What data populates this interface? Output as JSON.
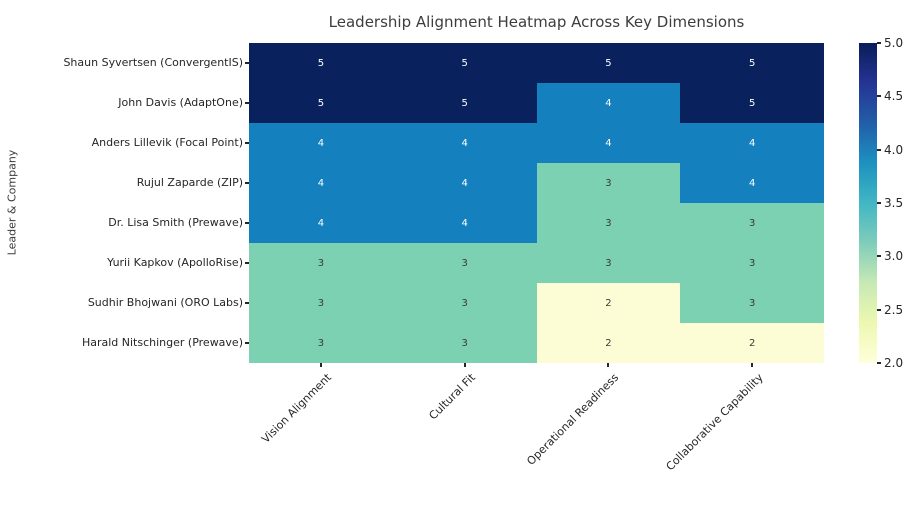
{
  "chart_data": {
    "type": "heatmap",
    "title": "Leadership Alignment Heatmap Across Key Dimensions",
    "xlabel": "",
    "ylabel": "Leader & Company",
    "rows": [
      "Shaun Syvertsen (ConvergentIS)",
      "John Davis (AdaptOne)",
      "Anders Lillevik (Focal Point)",
      "Rujul Zaparde (ZIP)",
      "Dr. Lisa Smith (Prewave)",
      "Yurii Kapkov (ApolloRise)",
      "Sudhir Bhojwani (ORO Labs)",
      "Harald Nitschinger (Prewave)"
    ],
    "columns": [
      "Vision Alignment",
      "Cultural Fit",
      "Operational Readiness",
      "Collaborative Capability"
    ],
    "values": [
      [
        5,
        5,
        5,
        5
      ],
      [
        5,
        5,
        4,
        5
      ],
      [
        4,
        4,
        4,
        4
      ],
      [
        4,
        4,
        3,
        4
      ],
      [
        4,
        4,
        3,
        3
      ],
      [
        3,
        3,
        3,
        3
      ],
      [
        3,
        3,
        2,
        3
      ],
      [
        3,
        3,
        2,
        2
      ]
    ],
    "value_colors": {
      "2": "#fcfdd5",
      "3": "#7cd1b3",
      "4": "#1480be",
      "5": "#09215c"
    },
    "annotation_text_colors": {
      "on_dark": "#ffffff",
      "on_light": "#3a3a3a"
    },
    "colorbar": {
      "min": 2.0,
      "max": 5.0,
      "tick_labels": [
        "5.0",
        "4.5",
        "4.0",
        "3.5",
        "3.0",
        "2.5",
        "2.0"
      ],
      "tick_values": [
        5.0,
        4.5,
        4.0,
        3.5,
        3.0,
        2.5,
        2.0
      ],
      "gradient_stops_top_to_bottom": [
        {
          "pos": 0.0,
          "color": "#081d58"
        },
        {
          "pos": 12.5,
          "color": "#253494"
        },
        {
          "pos": 25.0,
          "color": "#225ea8"
        },
        {
          "pos": 37.5,
          "color": "#1d91c0"
        },
        {
          "pos": 50.0,
          "color": "#41b6c4"
        },
        {
          "pos": 62.5,
          "color": "#7fcdbb"
        },
        {
          "pos": 75.0,
          "color": "#c7e9b4"
        },
        {
          "pos": 87.5,
          "color": "#edf8b1"
        },
        {
          "pos": 100.0,
          "color": "#ffffd9"
        }
      ],
      "legend_position": "right"
    },
    "grid": false
  }
}
